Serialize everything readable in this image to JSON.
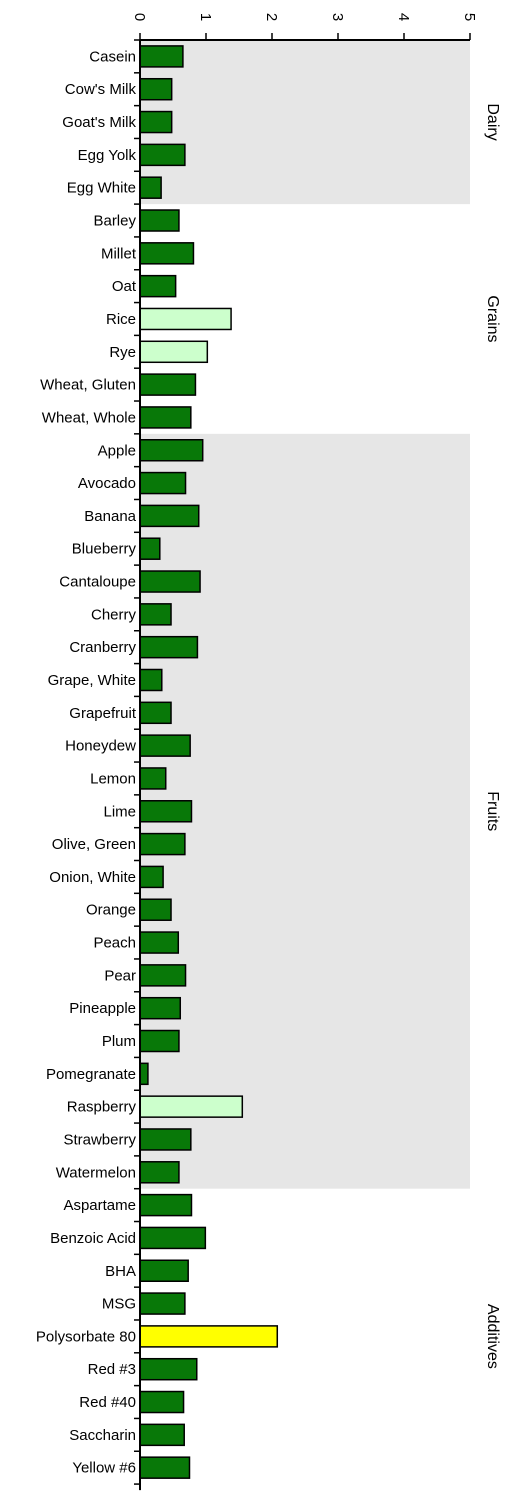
{
  "chart_data": {
    "type": "bar",
    "orientation": "horizontal",
    "xlim": [
      0,
      5
    ],
    "x_ticks": [
      0,
      1,
      2,
      3,
      4,
      5
    ],
    "tick_labels": [
      "0",
      "1",
      "2",
      "3",
      "4",
      "5"
    ],
    "xlabel": "",
    "ylabel": "",
    "grid": false,
    "legend": "none",
    "colors": {
      "normal": "#087808",
      "elevated": "#ccffcc",
      "high": "#ffff00",
      "band": "#e6e6e6",
      "outline": "#000000"
    },
    "groups": [
      {
        "name": "Dairy",
        "shaded": true,
        "items": [
          {
            "label": "Casein",
            "value": 0.65,
            "level": "normal"
          },
          {
            "label": "Cow's Milk",
            "value": 0.48,
            "level": "normal"
          },
          {
            "label": "Goat's Milk",
            "value": 0.48,
            "level": "normal"
          },
          {
            "label": "Egg Yolk",
            "value": 0.68,
            "level": "normal"
          },
          {
            "label": "Egg White",
            "value": 0.32,
            "level": "normal"
          }
        ]
      },
      {
        "name": "Grains",
        "shaded": false,
        "items": [
          {
            "label": "Barley",
            "value": 0.59,
            "level": "normal"
          },
          {
            "label": "Millet",
            "value": 0.81,
            "level": "normal"
          },
          {
            "label": "Oat",
            "value": 0.54,
            "level": "normal"
          },
          {
            "label": "Rice",
            "value": 1.38,
            "level": "elevated"
          },
          {
            "label": "Rye",
            "value": 1.02,
            "level": "elevated"
          },
          {
            "label": "Wheat, Gluten",
            "value": 0.84,
            "level": "normal"
          },
          {
            "label": "Wheat, Whole",
            "value": 0.77,
            "level": "normal"
          }
        ]
      },
      {
        "name": "Fruits",
        "shaded": true,
        "items": [
          {
            "label": "Apple",
            "value": 0.95,
            "level": "normal"
          },
          {
            "label": "Avocado",
            "value": 0.69,
            "level": "normal"
          },
          {
            "label": "Banana",
            "value": 0.89,
            "level": "normal"
          },
          {
            "label": "Blueberry",
            "value": 0.3,
            "level": "normal"
          },
          {
            "label": "Cantaloupe",
            "value": 0.91,
            "level": "normal"
          },
          {
            "label": "Cherry",
            "value": 0.47,
            "level": "normal"
          },
          {
            "label": "Cranberry",
            "value": 0.87,
            "level": "normal"
          },
          {
            "label": "Grape, White",
            "value": 0.33,
            "level": "normal"
          },
          {
            "label": "Grapefruit",
            "value": 0.47,
            "level": "normal"
          },
          {
            "label": "Honeydew",
            "value": 0.76,
            "level": "normal"
          },
          {
            "label": "Lemon",
            "value": 0.39,
            "level": "normal"
          },
          {
            "label": "Lime",
            "value": 0.78,
            "level": "normal"
          },
          {
            "label": "Olive, Green",
            "value": 0.68,
            "level": "normal"
          },
          {
            "label": "Onion, White",
            "value": 0.35,
            "level": "normal"
          },
          {
            "label": "Orange",
            "value": 0.47,
            "level": "normal"
          },
          {
            "label": "Peach",
            "value": 0.58,
            "level": "normal"
          },
          {
            "label": "Pear",
            "value": 0.69,
            "level": "normal"
          },
          {
            "label": "Pineapple",
            "value": 0.61,
            "level": "normal"
          },
          {
            "label": "Plum",
            "value": 0.59,
            "level": "normal"
          },
          {
            "label": "Pomegranate",
            "value": 0.12,
            "level": "normal"
          },
          {
            "label": "Raspberry",
            "value": 1.55,
            "level": "elevated"
          },
          {
            "label": "Strawberry",
            "value": 0.77,
            "level": "normal"
          },
          {
            "label": "Watermelon",
            "value": 0.59,
            "level": "normal"
          }
        ]
      },
      {
        "name": "Additives",
        "shaded": false,
        "items": [
          {
            "label": "Aspartame",
            "value": 0.78,
            "level": "normal"
          },
          {
            "label": "Benzoic Acid",
            "value": 0.99,
            "level": "normal"
          },
          {
            "label": "BHA",
            "value": 0.73,
            "level": "normal"
          },
          {
            "label": "MSG",
            "value": 0.68,
            "level": "normal"
          },
          {
            "label": "Polysorbate 80",
            "value": 2.08,
            "level": "high"
          },
          {
            "label": "Red #3",
            "value": 0.86,
            "level": "normal"
          },
          {
            "label": "Red #40",
            "value": 0.66,
            "level": "normal"
          },
          {
            "label": "Saccharin",
            "value": 0.67,
            "level": "normal"
          },
          {
            "label": "Yellow #6",
            "value": 0.75,
            "level": "normal"
          }
        ]
      }
    ]
  }
}
